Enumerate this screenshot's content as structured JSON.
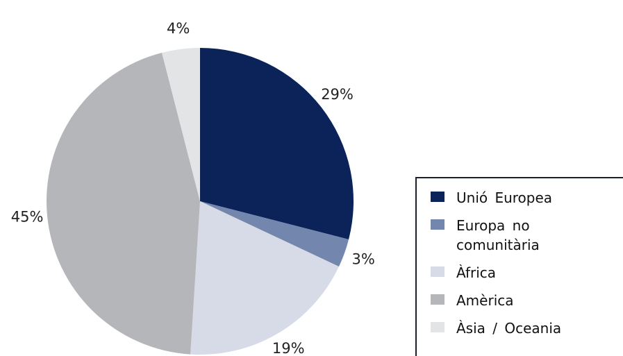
{
  "chart_data": {
    "type": "pie",
    "categories": [
      "Unió Europea",
      "Europa no comunitària",
      "Àfrica",
      "Amèrica",
      "Àsia / Oceania"
    ],
    "values": [
      29,
      3,
      19,
      45,
      4
    ],
    "value_labels": [
      "29%",
      "3%",
      "19%",
      "45%",
      "4%"
    ],
    "colors": [
      "#0b2358",
      "#7387ae",
      "#d6dbe7",
      "#b5b6ba",
      "#e3e4e6"
    ],
    "legend": "right"
  }
}
